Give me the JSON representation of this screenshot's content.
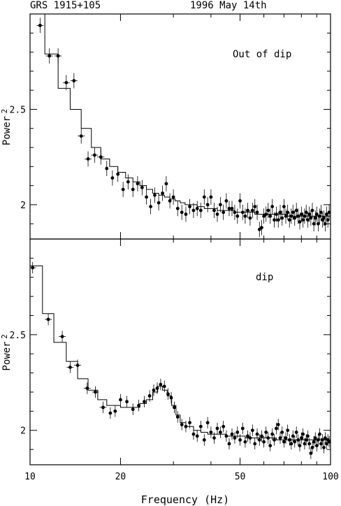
{
  "header": {
    "source": "GRS 1915+105",
    "date": "1996 May 14th"
  },
  "chart_data": [
    {
      "type": "scatter",
      "panel_label": "Out of dip",
      "ylabel": "Power",
      "ylabel_subscript": "2",
      "xscale": "log",
      "xlim": [
        10,
        100
      ],
      "ylim": [
        1.82,
        3.0
      ],
      "yticks": [
        2,
        2.5
      ],
      "ytick_labels": [
        "2",
        "2.5"
      ],
      "grid": false,
      "points": [
        [
          10.8,
          2.94
        ],
        [
          11.6,
          2.78
        ],
        [
          12.4,
          2.78
        ],
        [
          13.2,
          2.64
        ],
        [
          14.0,
          2.65
        ],
        [
          14.8,
          2.36
        ],
        [
          15.6,
          2.24
        ],
        [
          16.4,
          2.26
        ],
        [
          17.2,
          2.25
        ],
        [
          18.0,
          2.19
        ],
        [
          18.8,
          2.14
        ],
        [
          19.6,
          2.16
        ],
        [
          20.4,
          2.08
        ],
        [
          21.2,
          2.12
        ],
        [
          22.0,
          2.08
        ],
        [
          22.8,
          2.11
        ],
        [
          23.6,
          2.09
        ],
        [
          24.4,
          2.04
        ],
        [
          25.2,
          1.99
        ],
        [
          26.0,
          2.05
        ],
        [
          26.8,
          2.01
        ],
        [
          27.6,
          2.06
        ],
        [
          28.4,
          2.11
        ],
        [
          29.2,
          2.02
        ],
        [
          30.0,
          2.04
        ],
        [
          31.0,
          1.98
        ],
        [
          32.0,
          1.96
        ],
        [
          33.0,
          1.95
        ],
        [
          34.0,
          1.99
        ],
        [
          35.0,
          1.97
        ],
        [
          36.0,
          1.98
        ],
        [
          37.0,
          1.97
        ],
        [
          38.0,
          2.04
        ],
        [
          39.0,
          2.0
        ],
        [
          40.0,
          2.04
        ],
        [
          41.0,
          1.97
        ],
        [
          42.0,
          1.95
        ],
        [
          43.0,
          2.0
        ],
        [
          44.0,
          1.96
        ],
        [
          45.0,
          2.02
        ],
        [
          46.0,
          1.98
        ],
        [
          47.0,
          1.98
        ],
        [
          48.0,
          1.96
        ],
        [
          49.0,
          1.94
        ],
        [
          50.0,
          2.02
        ],
        [
          51.0,
          1.96
        ],
        [
          52.0,
          1.94
        ],
        [
          53.0,
          1.97
        ],
        [
          54.0,
          1.93
        ],
        [
          55.0,
          1.97
        ],
        [
          56.0,
          1.99
        ],
        [
          57.0,
          1.96
        ],
        [
          58.0,
          1.87
        ],
        [
          59.0,
          1.88
        ],
        [
          60.0,
          1.94
        ],
        [
          61.0,
          1.95
        ],
        [
          62.0,
          1.97
        ],
        [
          63.0,
          1.94
        ],
        [
          64.0,
          1.99
        ],
        [
          65.0,
          1.92
        ],
        [
          66.0,
          1.95
        ],
        [
          67.0,
          1.92
        ],
        [
          68.0,
          1.96
        ],
        [
          69.0,
          1.93
        ],
        [
          70.0,
          1.99
        ],
        [
          71.0,
          1.94
        ],
        [
          72.0,
          1.96
        ],
        [
          73.0,
          1.92
        ],
        [
          74.0,
          1.94
        ],
        [
          75.0,
          1.96
        ],
        [
          76.0,
          1.93
        ],
        [
          77.0,
          1.97
        ],
        [
          78.0,
          1.94
        ],
        [
          79.0,
          1.91
        ],
        [
          80.0,
          1.95
        ],
        [
          81.0,
          1.92
        ],
        [
          82.0,
          1.94
        ],
        [
          83.0,
          1.96
        ],
        [
          84.0,
          1.92
        ],
        [
          85.0,
          1.95
        ],
        [
          86.0,
          1.93
        ],
        [
          87.0,
          1.97
        ],
        [
          88.0,
          1.9
        ],
        [
          89.0,
          1.93
        ],
        [
          90.0,
          1.95
        ],
        [
          91.0,
          1.9
        ],
        [
          92.0,
          1.94
        ],
        [
          93.0,
          1.96
        ],
        [
          94.0,
          1.92
        ],
        [
          95.0,
          1.93
        ],
        [
          96.0,
          1.9
        ],
        [
          97.0,
          1.95
        ],
        [
          98.0,
          1.92
        ],
        [
          99.0,
          1.96
        ]
      ],
      "error": 0.04,
      "model_steps": [
        [
          10.0,
          3.0
        ],
        [
          11.2,
          2.79
        ],
        [
          12.4,
          2.61
        ],
        [
          13.6,
          2.5
        ],
        [
          14.8,
          2.4
        ],
        [
          16.0,
          2.3
        ],
        [
          17.2,
          2.24
        ],
        [
          18.4,
          2.2
        ],
        [
          19.6,
          2.17
        ],
        [
          20.8,
          2.14
        ],
        [
          22.0,
          2.12
        ],
        [
          23.2,
          2.1
        ],
        [
          24.4,
          2.08
        ],
        [
          25.6,
          2.06
        ],
        [
          26.8,
          2.05
        ],
        [
          28.0,
          2.04
        ],
        [
          29.2,
          2.03
        ],
        [
          30.4,
          2.02
        ],
        [
          31.6,
          2.01
        ],
        [
          32.8,
          2.0
        ],
        [
          34.0,
          2.0
        ],
        [
          36.0,
          1.99
        ],
        [
          38.0,
          1.98
        ],
        [
          40.0,
          1.98
        ],
        [
          42.0,
          1.97
        ],
        [
          45.0,
          1.97
        ],
        [
          48.0,
          1.96
        ],
        [
          52.0,
          1.96
        ],
        [
          56.0,
          1.95
        ],
        [
          60.0,
          1.95
        ],
        [
          66.0,
          1.95
        ],
        [
          72.0,
          1.94
        ],
        [
          80.0,
          1.94
        ],
        [
          90.0,
          1.94
        ],
        [
          100.0,
          1.94
        ]
      ]
    },
    {
      "type": "scatter",
      "panel_label": "dip",
      "ylabel": "Power",
      "ylabel_subscript": "2",
      "xlabel": "Frequency (Hz)",
      "xscale": "log",
      "xlim": [
        10,
        100
      ],
      "xticks": [
        10,
        20,
        50,
        100
      ],
      "xtick_labels": [
        "10",
        "20",
        "50",
        "100"
      ],
      "ylim": [
        1.82,
        3.0
      ],
      "yticks": [
        2,
        2.5
      ],
      "ytick_labels": [
        "2",
        "2.5"
      ],
      "grid": false,
      "points": [
        [
          10.2,
          2.85
        ],
        [
          11.5,
          2.58
        ],
        [
          12.8,
          2.49
        ],
        [
          13.6,
          2.33
        ],
        [
          14.4,
          2.34
        ],
        [
          15.5,
          2.22
        ],
        [
          16.5,
          2.2
        ],
        [
          17.5,
          2.12
        ],
        [
          18.5,
          2.09
        ],
        [
          19.2,
          2.1
        ],
        [
          20.0,
          2.16
        ],
        [
          21.0,
          2.15
        ],
        [
          22.0,
          2.11
        ],
        [
          23.0,
          2.13
        ],
        [
          24.0,
          2.15
        ],
        [
          25.0,
          2.18
        ],
        [
          25.8,
          2.21
        ],
        [
          26.5,
          2.22
        ],
        [
          27.2,
          2.24
        ],
        [
          28.0,
          2.23
        ],
        [
          28.8,
          2.19
        ],
        [
          29.5,
          2.17
        ],
        [
          30.2,
          2.12
        ],
        [
          31.0,
          2.07
        ],
        [
          32.0,
          2.03
        ],
        [
          33.0,
          2.02
        ],
        [
          34.0,
          2.04
        ],
        [
          35.0,
          1.98
        ],
        [
          36.0,
          1.97
        ],
        [
          37.0,
          2.02
        ],
        [
          38.0,
          1.95
        ],
        [
          39.0,
          2.04
        ],
        [
          40.0,
          1.99
        ],
        [
          41.0,
          1.96
        ],
        [
          42.0,
          2.01
        ],
        [
          43.0,
          1.99
        ],
        [
          44.0,
          2.02
        ],
        [
          45.0,
          1.97
        ],
        [
          46.0,
          1.93
        ],
        [
          47.0,
          1.98
        ],
        [
          48.0,
          1.96
        ],
        [
          49.0,
          1.99
        ],
        [
          50.0,
          1.95
        ],
        [
          51.0,
          2.01
        ],
        [
          52.0,
          1.94
        ],
        [
          53.0,
          1.97
        ],
        [
          54.0,
          1.96
        ],
        [
          55.0,
          2.0
        ],
        [
          56.0,
          1.93
        ],
        [
          57.0,
          1.98
        ],
        [
          58.0,
          1.95
        ],
        [
          59.0,
          1.97
        ],
        [
          60.0,
          1.94
        ],
        [
          61.0,
          1.99
        ],
        [
          62.0,
          1.96
        ],
        [
          63.0,
          1.92
        ],
        [
          64.0,
          1.98
        ],
        [
          65.0,
          1.95
        ],
        [
          66.0,
          2.01
        ],
        [
          67.0,
          2.03
        ],
        [
          68.0,
          1.96
        ],
        [
          69.0,
          1.99
        ],
        [
          70.0,
          1.94
        ],
        [
          71.0,
          1.96
        ],
        [
          72.0,
          2.0
        ],
        [
          73.0,
          1.95
        ],
        [
          74.0,
          1.93
        ],
        [
          75.0,
          1.97
        ],
        [
          76.0,
          1.94
        ],
        [
          77.0,
          1.99
        ],
        [
          78.0,
          1.95
        ],
        [
          79.0,
          1.92
        ],
        [
          80.0,
          1.96
        ],
        [
          81.0,
          1.98
        ],
        [
          82.0,
          1.93
        ],
        [
          83.0,
          1.95
        ],
        [
          84.0,
          1.97
        ],
        [
          85.0,
          1.93
        ],
        [
          86.0,
          1.88
        ],
        [
          87.0,
          1.91
        ],
        [
          88.0,
          1.94
        ],
        [
          89.0,
          1.96
        ],
        [
          90.0,
          1.92
        ],
        [
          91.0,
          1.95
        ],
        [
          92.0,
          1.98
        ],
        [
          93.0,
          1.93
        ],
        [
          94.0,
          1.95
        ],
        [
          95.0,
          1.91
        ],
        [
          96.0,
          1.96
        ],
        [
          97.0,
          1.93
        ],
        [
          98.0,
          1.95
        ],
        [
          99.0,
          1.94
        ]
      ],
      "error": 0.03,
      "model_steps": [
        [
          10.0,
          2.86
        ],
        [
          11.0,
          2.61
        ],
        [
          12.0,
          2.46
        ],
        [
          13.2,
          2.36
        ],
        [
          14.4,
          2.27
        ],
        [
          15.6,
          2.21
        ],
        [
          16.8,
          2.16
        ],
        [
          18.0,
          2.13
        ],
        [
          20.0,
          2.12
        ],
        [
          22.0,
          2.12
        ],
        [
          23.2,
          2.14
        ],
        [
          24.4,
          2.16
        ],
        [
          25.6,
          2.2
        ],
        [
          26.6,
          2.23
        ],
        [
          27.6,
          2.21
        ],
        [
          28.6,
          2.18
        ],
        [
          29.6,
          2.13
        ],
        [
          30.6,
          2.08
        ],
        [
          31.6,
          2.04
        ],
        [
          33.0,
          2.02
        ],
        [
          35.0,
          2.0
        ],
        [
          37.0,
          1.99
        ],
        [
          39.0,
          1.98
        ],
        [
          42.0,
          1.98
        ],
        [
          45.0,
          1.97
        ],
        [
          48.0,
          1.97
        ],
        [
          52.0,
          1.96
        ],
        [
          56.0,
          1.96
        ],
        [
          60.0,
          1.96
        ],
        [
          66.0,
          1.95
        ],
        [
          72.0,
          1.95
        ],
        [
          80.0,
          1.95
        ],
        [
          90.0,
          1.95
        ],
        [
          100.0,
          1.95
        ]
      ]
    }
  ]
}
